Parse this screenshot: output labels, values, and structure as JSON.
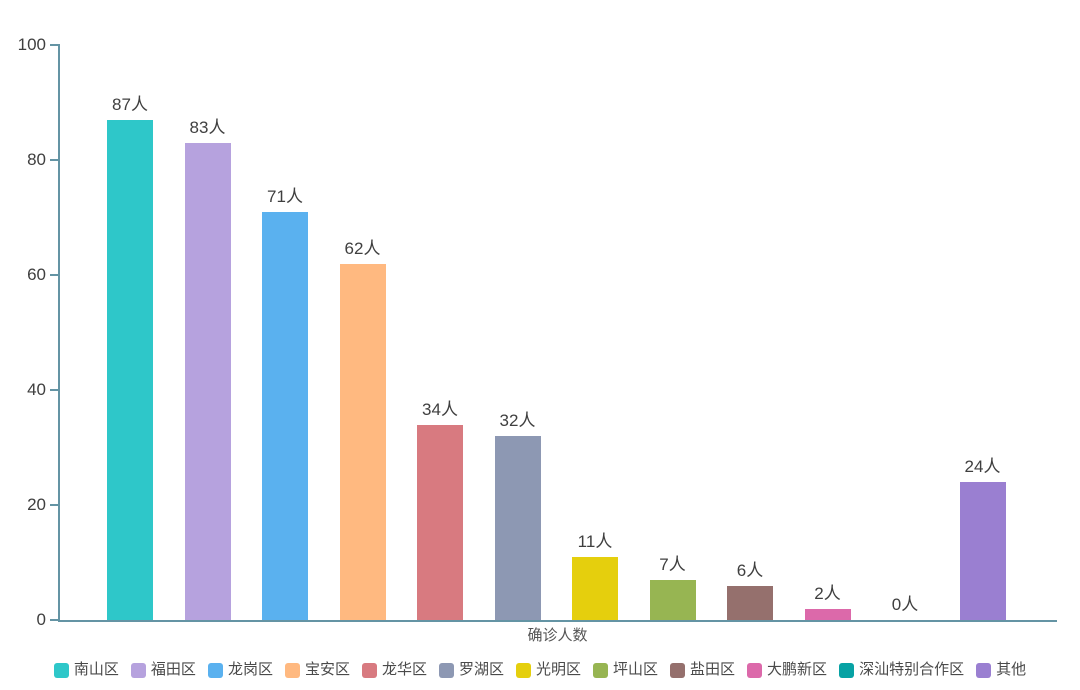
{
  "chart_data": {
    "type": "bar",
    "title": "",
    "xlabel": "确诊人数",
    "ylabel": "",
    "unit": "人",
    "categories": [
      "南山区",
      "福田区",
      "龙岗区",
      "宝安区",
      "龙华区",
      "罗湖区",
      "光明区",
      "坪山区",
      "盐田区",
      "大鹏新区",
      "深汕特别合作区",
      "其他"
    ],
    "values": [
      87,
      83,
      71,
      62,
      34,
      32,
      11,
      7,
      6,
      2,
      0,
      24
    ],
    "value_labels": [
      "87人",
      "83人",
      "71人",
      "62人",
      "34人",
      "32人",
      "11人",
      "7人",
      "6人",
      "2人",
      "0人",
      "24人"
    ],
    "colors": [
      "#2ec7c9",
      "#b6a2de",
      "#5ab1ef",
      "#ffb980",
      "#d87a80",
      "#8d98b3",
      "#e5cf0d",
      "#97b552",
      "#95706d",
      "#dc69aa",
      "#07a2a4",
      "#9a7fd1"
    ],
    "ylim": [
      0,
      100
    ],
    "yticks": [
      0,
      20,
      40,
      60,
      80,
      100
    ],
    "grid": false,
    "legend_position": "bottom",
    "axis_color": "#6494a4",
    "text_color": "#3f3f3f"
  }
}
